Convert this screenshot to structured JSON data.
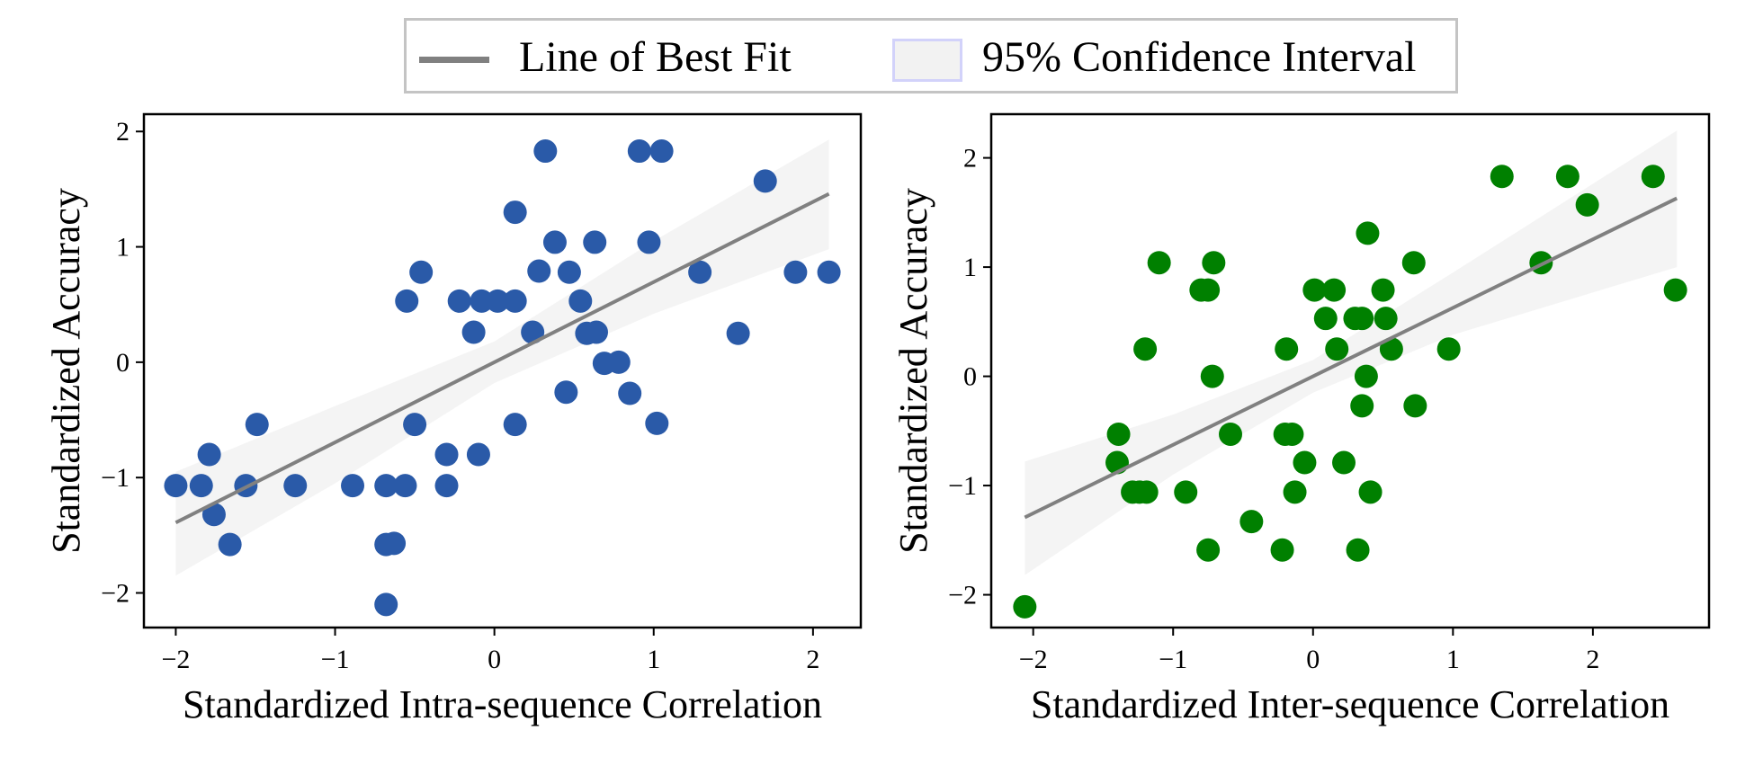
{
  "legend": {
    "items": [
      {
        "label": "Line of Best Fit",
        "type": "line",
        "color": "#808080"
      },
      {
        "label": "95% Confidence Interval",
        "type": "patch",
        "color": "#f2f2f2",
        "edge_color": "#d2d2fa"
      }
    ],
    "placement": "top-center"
  },
  "chart_data": [
    {
      "type": "scatter",
      "title": "",
      "xlabel": "Standardized Intra-sequence Correlation",
      "ylabel": "Standardized Accuracy",
      "xlim": [
        -2.2,
        2.3
      ],
      "ylim": [
        -2.3,
        2.15
      ],
      "xticks": [
        -2,
        -1,
        0,
        1,
        2
      ],
      "yticks": [
        -2,
        -1,
        0,
        1,
        2
      ],
      "xtick_labels": [
        "−2",
        "−1",
        "0",
        "1",
        "2"
      ],
      "ytick_labels": [
        "−2",
        "−1",
        "0",
        "1",
        "2"
      ],
      "grid": false,
      "point_color": "#2a5aa8",
      "points": [
        [
          -2.0,
          -1.07
        ],
        [
          -1.84,
          -1.07
        ],
        [
          -1.79,
          -0.8
        ],
        [
          -1.76,
          -1.32
        ],
        [
          -1.66,
          -1.58
        ],
        [
          -1.56,
          -1.07
        ],
        [
          -1.49,
          -0.54
        ],
        [
          -1.25,
          -1.07
        ],
        [
          -0.89,
          -1.07
        ],
        [
          -0.68,
          -1.07
        ],
        [
          -0.68,
          -1.58
        ],
        [
          -0.63,
          -1.57
        ],
        [
          -0.68,
          -2.1
        ],
        [
          -0.56,
          -1.07
        ],
        [
          -0.55,
          0.53
        ],
        [
          -0.5,
          -0.54
        ],
        [
          -0.46,
          0.78
        ],
        [
          -0.3,
          -0.8
        ],
        [
          -0.3,
          -1.07
        ],
        [
          -0.22,
          0.53
        ],
        [
          -0.13,
          0.26
        ],
        [
          -0.1,
          -0.8
        ],
        [
          -0.08,
          0.53
        ],
        [
          0.02,
          0.53
        ],
        [
          0.13,
          1.3
        ],
        [
          0.13,
          -0.54
        ],
        [
          0.13,
          0.53
        ],
        [
          0.24,
          0.26
        ],
        [
          0.28,
          0.79
        ],
        [
          0.32,
          1.83
        ],
        [
          0.38,
          1.04
        ],
        [
          0.45,
          -0.26
        ],
        [
          0.47,
          0.78
        ],
        [
          0.54,
          0.53
        ],
        [
          0.58,
          0.25
        ],
        [
          0.63,
          1.04
        ],
        [
          0.64,
          0.26
        ],
        [
          0.69,
          -0.01
        ],
        [
          0.78,
          0.0
        ],
        [
          0.85,
          -0.27
        ],
        [
          0.91,
          1.83
        ],
        [
          0.97,
          1.04
        ],
        [
          1.02,
          -0.53
        ],
        [
          1.05,
          1.83
        ],
        [
          1.29,
          0.78
        ],
        [
          1.53,
          0.25
        ],
        [
          1.7,
          1.57
        ],
        [
          1.89,
          0.78
        ],
        [
          2.1,
          0.78
        ]
      ],
      "fit": {
        "slope": 0.695,
        "intercept": 0.0,
        "x_range": [
          -2.0,
          2.1
        ]
      },
      "ci": {
        "x": [
          -2.0,
          -1.0,
          0.0,
          1.0,
          2.1
        ],
        "lower": [
          -1.85,
          -1.05,
          -0.18,
          0.42,
          0.98
        ],
        "upper": [
          -0.95,
          -0.38,
          0.18,
          1.05,
          1.93
        ]
      }
    },
    {
      "type": "scatter",
      "title": "",
      "xlabel": "Standardized Inter-sequence Correlation",
      "ylabel": "Standardized Accuracy",
      "xlim": [
        -2.3,
        2.83
      ],
      "ylim": [
        -2.3,
        2.4
      ],
      "xticks": [
        -2,
        -1,
        0,
        1,
        2
      ],
      "yticks": [
        -2,
        -1,
        0,
        1,
        2
      ],
      "xtick_labels": [
        "−2",
        "−1",
        "0",
        "1",
        "2"
      ],
      "ytick_labels": [
        "−2",
        "−1",
        "0",
        "1",
        "2"
      ],
      "grid": false,
      "point_color": "#008000",
      "points": [
        [
          -2.06,
          -2.11
        ],
        [
          -1.39,
          -0.53
        ],
        [
          -1.4,
          -0.79
        ],
        [
          -1.29,
          -1.06
        ],
        [
          -1.24,
          -1.06
        ],
        [
          -1.19,
          -1.06
        ],
        [
          -1.2,
          0.25
        ],
        [
          -1.1,
          1.04
        ],
        [
          -0.91,
          -1.06
        ],
        [
          -0.8,
          0.79
        ],
        [
          -0.75,
          0.79
        ],
        [
          -0.71,
          1.04
        ],
        [
          -0.75,
          -1.59
        ],
        [
          -0.72,
          0.0
        ],
        [
          -0.59,
          -0.53
        ],
        [
          -0.44,
          -1.33
        ],
        [
          -0.22,
          -1.59
        ],
        [
          -0.19,
          0.25
        ],
        [
          -0.2,
          -0.53
        ],
        [
          -0.15,
          -0.53
        ],
        [
          -0.13,
          -1.06
        ],
        [
          -0.06,
          -0.79
        ],
        [
          0.01,
          0.79
        ],
        [
          0.09,
          0.53
        ],
        [
          0.15,
          0.79
        ],
        [
          0.17,
          0.25
        ],
        [
          0.22,
          -0.79
        ],
        [
          0.3,
          0.53
        ],
        [
          0.35,
          0.53
        ],
        [
          0.32,
          -1.59
        ],
        [
          0.35,
          -0.27
        ],
        [
          0.38,
          0.0
        ],
        [
          0.39,
          1.31
        ],
        [
          0.41,
          -1.06
        ],
        [
          0.5,
          0.79
        ],
        [
          0.52,
          0.53
        ],
        [
          0.56,
          0.25
        ],
        [
          0.72,
          1.04
        ],
        [
          0.73,
          -0.27
        ],
        [
          0.97,
          0.25
        ],
        [
          1.35,
          1.83
        ],
        [
          1.63,
          1.04
        ],
        [
          1.82,
          1.83
        ],
        [
          1.96,
          1.57
        ],
        [
          2.43,
          1.83
        ],
        [
          2.59,
          0.79
        ]
      ],
      "fit": {
        "slope": 0.627,
        "intercept": 0.0,
        "x_range": [
          -2.06,
          2.6
        ]
      },
      "ci": {
        "x": [
          -2.06,
          -1.0,
          0.0,
          1.0,
          2.6
        ],
        "lower": [
          -1.82,
          -0.9,
          -0.15,
          0.38,
          1.0
        ],
        "upper": [
          -0.78,
          -0.35,
          0.15,
          0.95,
          2.25
        ]
      }
    }
  ]
}
